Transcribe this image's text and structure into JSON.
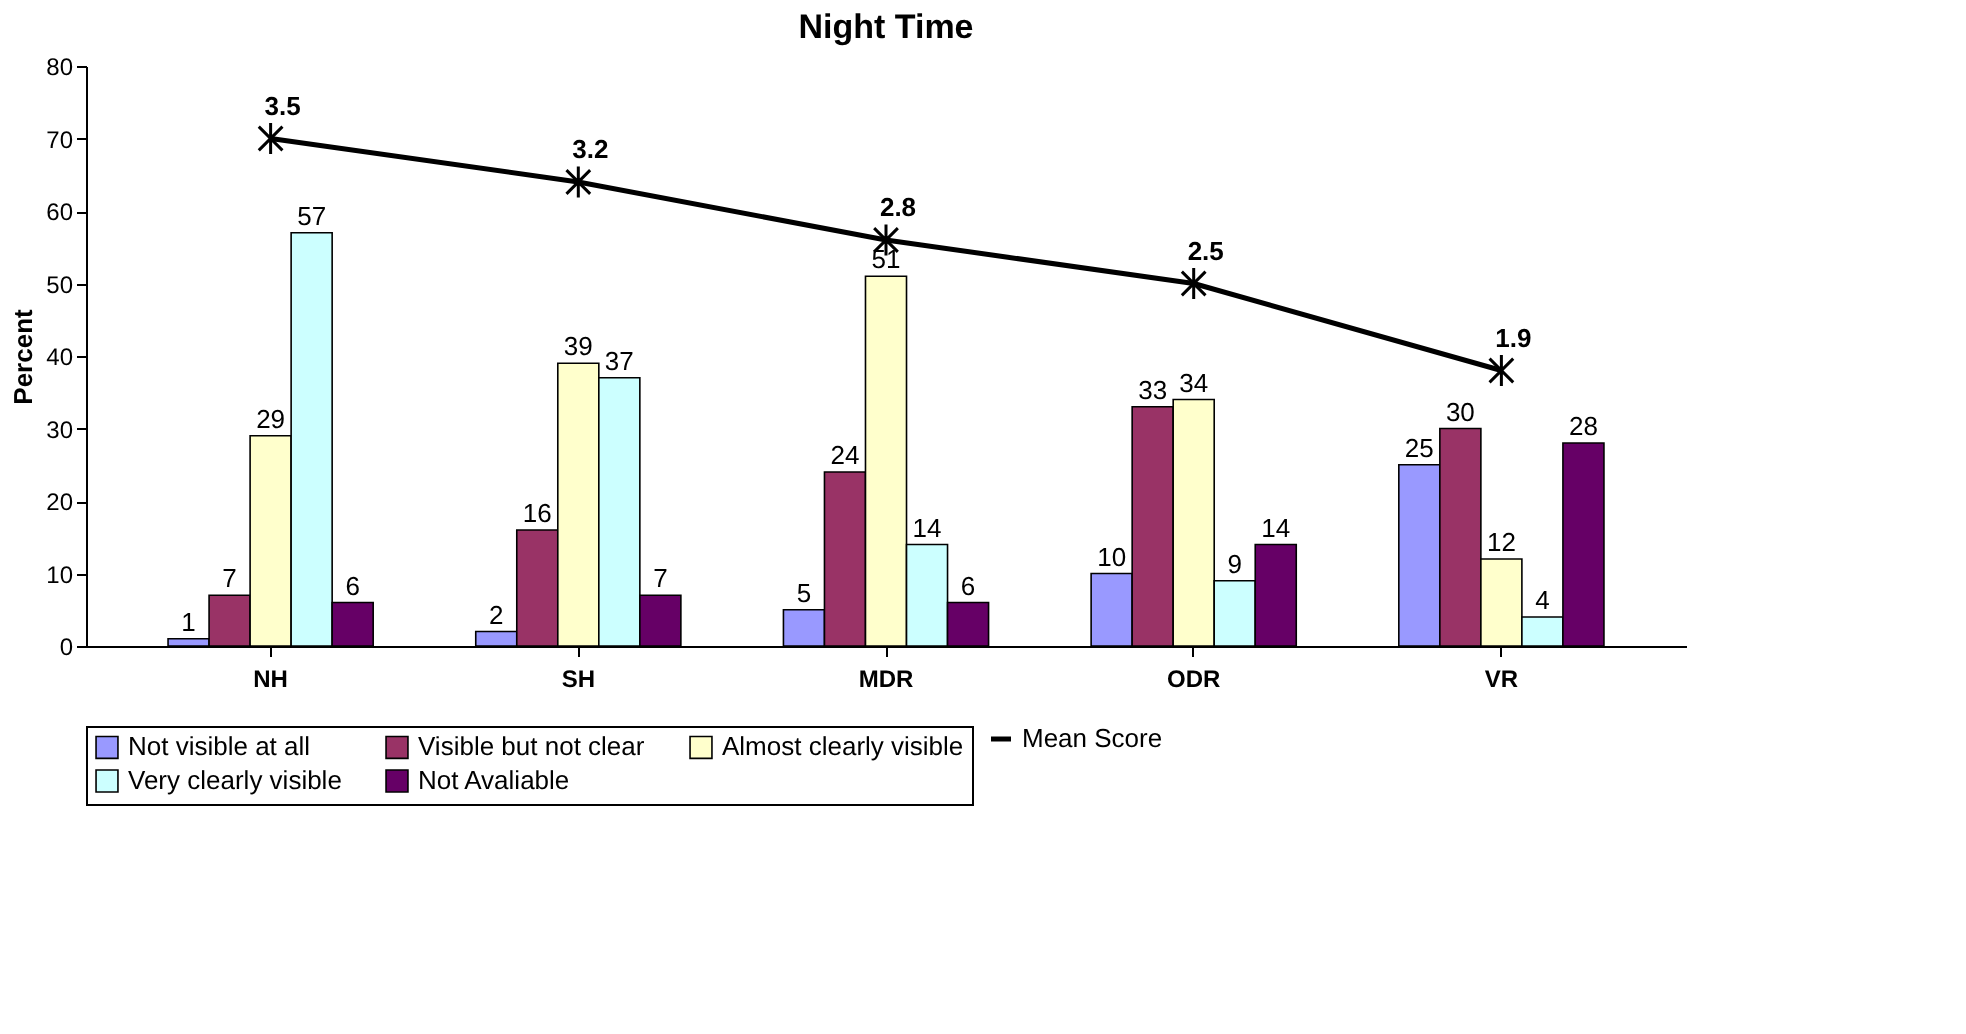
{
  "chart_data": {
    "type": "bar",
    "title": "Night Time",
    "ylabel": "Percent",
    "categories": [
      "NH",
      "SH",
      "MDR",
      "ODR",
      "VR"
    ],
    "series": [
      {
        "name": "Not visible at all",
        "color": "#9999ff",
        "values": [
          1,
          2,
          5,
          10,
          25
        ]
      },
      {
        "name": "Visible but not clear",
        "color": "#993366",
        "values": [
          7,
          16,
          24,
          33,
          30
        ]
      },
      {
        "name": "Almost clearly visible",
        "color": "#ffffcc",
        "values": [
          29,
          39,
          51,
          34,
          12
        ]
      },
      {
        "name": "Very clearly visible",
        "color": "#ccffff",
        "values": [
          57,
          37,
          14,
          9,
          4
        ]
      },
      {
        "name": "Not Avaliable",
        "color": "#660066",
        "values": [
          6,
          7,
          6,
          14,
          28
        ]
      },
      {
        "name": "Mean Score",
        "color": "#000000",
        "type": "line",
        "axis": "y2",
        "marker": "cross",
        "line_style": "solid",
        "values": [
          3.5,
          3.2,
          2.8,
          2.5,
          1.9
        ]
      }
    ],
    "ylim": [
      0,
      80
    ],
    "yticks": [
      0,
      10,
      20,
      30,
      40,
      50,
      60,
      70,
      80
    ],
    "y2lim": [
      0,
      4
    ],
    "data_labels": true,
    "grid": false,
    "legend": "bottom"
  }
}
